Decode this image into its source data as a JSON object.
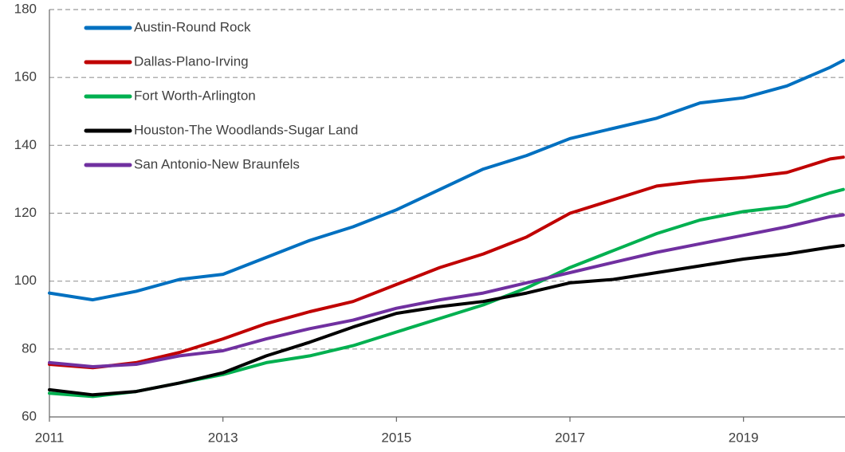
{
  "chart_data": {
    "type": "line",
    "x": [
      2011,
      2011.5,
      2012,
      2012.5,
      2013,
      2013.5,
      2014,
      2014.5,
      2015,
      2015.5,
      2016,
      2016.5,
      2017,
      2017.5,
      2018,
      2018.5,
      2019,
      2019.5,
      2020,
      2020.15
    ],
    "series": [
      {
        "name": "Austin-Round Rock",
        "color": "#0070c0",
        "values": [
          96.5,
          94.5,
          97,
          100.5,
          102,
          107,
          112,
          116,
          121,
          127,
          133,
          137,
          142,
          145,
          148,
          152.5,
          154,
          157.5,
          163,
          165
        ]
      },
      {
        "name": "Dallas-Plano-Irving",
        "color": "#c00000",
        "values": [
          75.5,
          74.5,
          76,
          79,
          83,
          87.5,
          91,
          94,
          99,
          104,
          108,
          113,
          120,
          124,
          128,
          129.5,
          130.5,
          132,
          136,
          136.5
        ]
      },
      {
        "name": "Fort Worth-Arlington",
        "color": "#00b050",
        "values": [
          67,
          66,
          67.5,
          70,
          72.5,
          76,
          78,
          81,
          85,
          89,
          93,
          98,
          104,
          109,
          114,
          118,
          120.5,
          122,
          126,
          127
        ]
      },
      {
        "name": "Houston-The Woodlands-Sugar Land",
        "color": "#000000",
        "values": [
          68,
          66.5,
          67.5,
          70,
          73,
          78,
          82,
          86.5,
          90.5,
          92.5,
          94,
          96.5,
          99.5,
          100.5,
          102.5,
          104.5,
          106.5,
          108,
          110,
          110.5
        ]
      },
      {
        "name": "San Antonio-New Braunfels",
        "color": "#7030a0",
        "values": [
          76,
          74.8,
          75.5,
          78,
          79.5,
          83,
          86,
          88.5,
          92,
          94.5,
          96.5,
          99.5,
          102.5,
          105.5,
          108.5,
          111,
          113.5,
          116,
          119,
          119.5
        ]
      }
    ],
    "xlim": [
      2011,
      2020.17
    ],
    "xticks": [
      2011,
      2013,
      2015,
      2017,
      2019
    ],
    "ylim": [
      60,
      180
    ],
    "yticks": [
      60,
      80,
      100,
      120,
      140,
      160,
      180
    ],
    "grid": true,
    "legend": "upper left"
  }
}
